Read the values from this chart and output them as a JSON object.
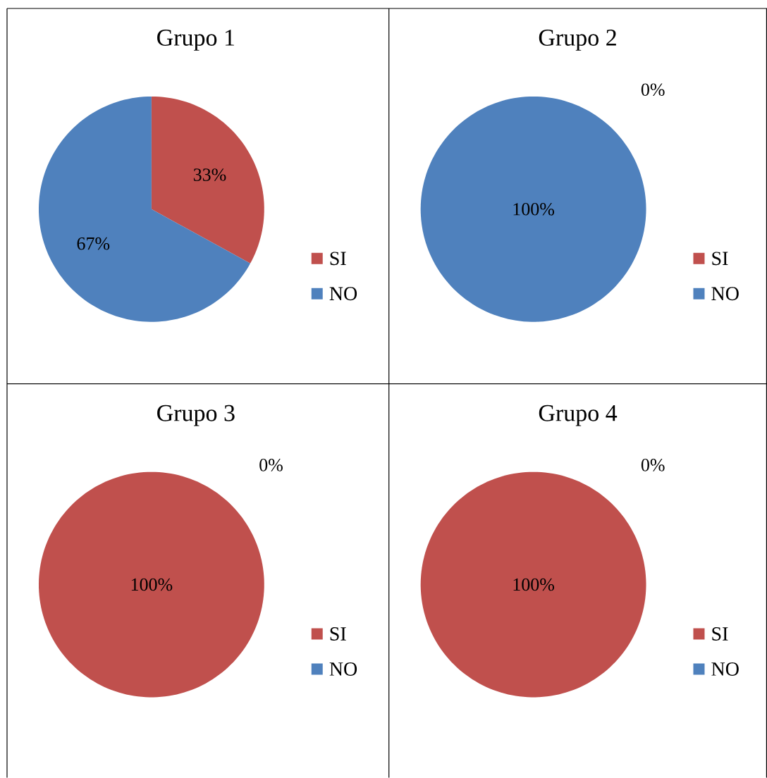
{
  "chart_data": [
    {
      "type": "pie",
      "title": "Grupo 1",
      "categories": [
        "SI",
        "NO"
      ],
      "values": [
        33,
        67
      ],
      "colors": [
        "#c0504d",
        "#4f81bd"
      ],
      "value_labels": [
        "33%",
        "67%"
      ],
      "legend": "right"
    },
    {
      "type": "pie",
      "title": "Grupo 2",
      "categories": [
        "SI",
        "NO"
      ],
      "values": [
        0,
        100
      ],
      "colors": [
        "#c0504d",
        "#4f81bd"
      ],
      "value_labels": [
        "0%",
        "100%"
      ],
      "legend": "right"
    },
    {
      "type": "pie",
      "title": "Grupo 3",
      "categories": [
        "SI",
        "NO"
      ],
      "values": [
        100,
        0
      ],
      "colors": [
        "#c0504d",
        "#4f81bd"
      ],
      "value_labels": [
        "100%",
        "0%"
      ],
      "legend": "right"
    },
    {
      "type": "pie",
      "title": "Grupo 4",
      "categories": [
        "SI",
        "NO"
      ],
      "values": [
        100,
        0
      ],
      "colors": [
        "#c0504d",
        "#4f81bd"
      ],
      "value_labels": [
        "100%",
        "0%"
      ],
      "legend": "right"
    }
  ]
}
